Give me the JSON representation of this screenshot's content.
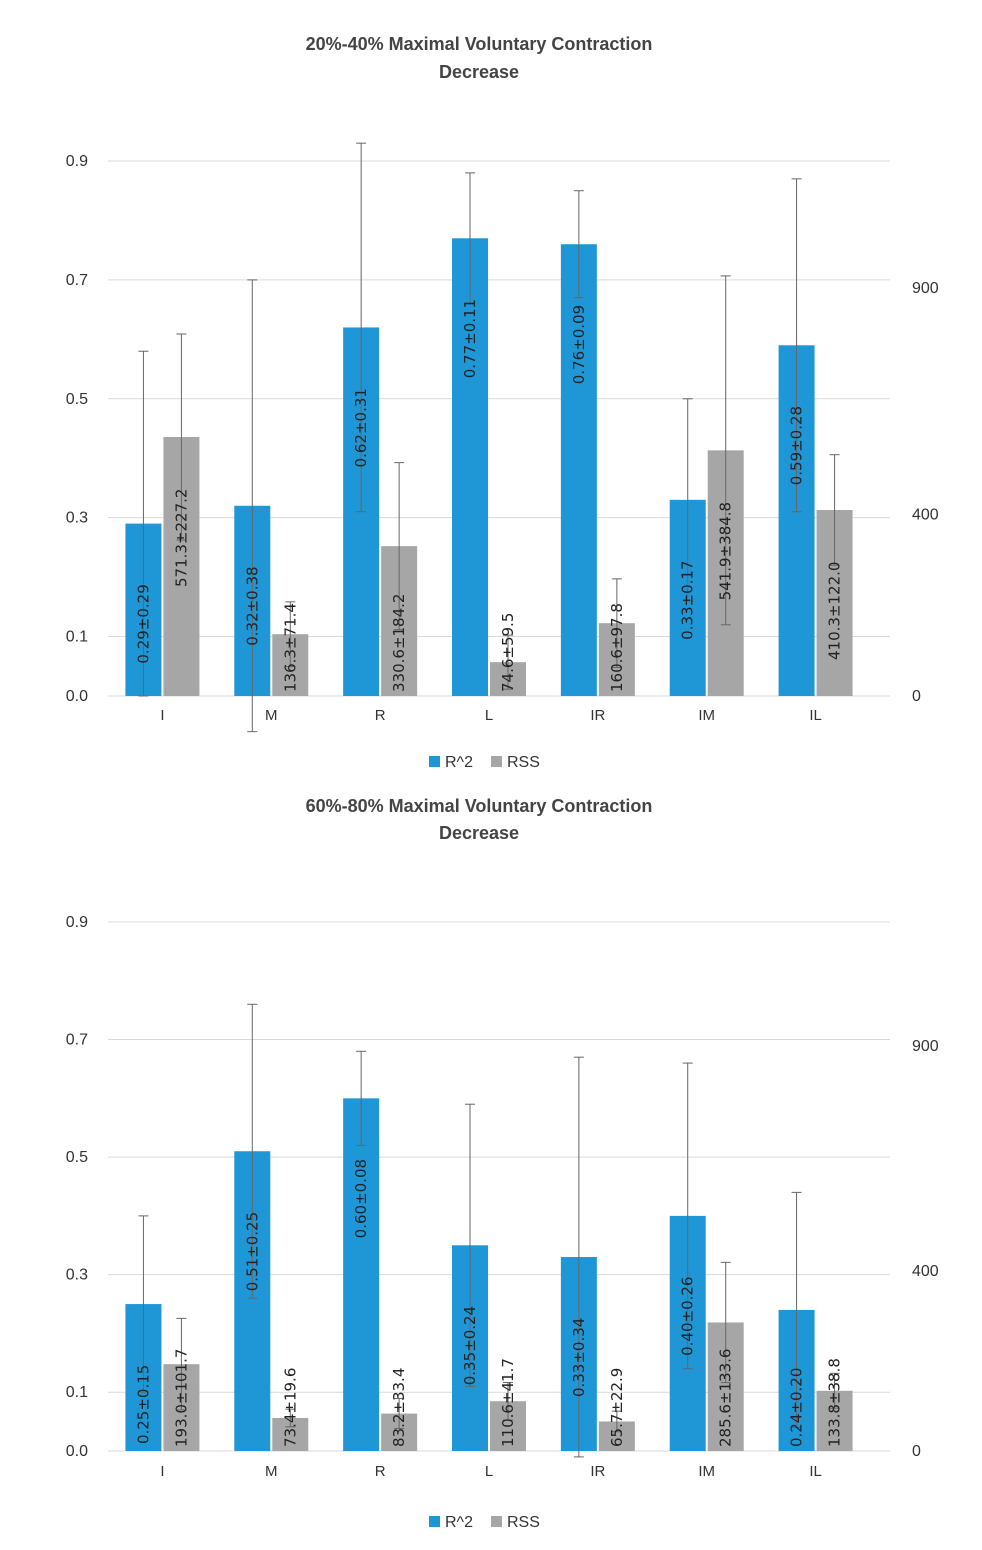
{
  "chart_data": [
    {
      "type": "bar",
      "title": "20%-40% Maximal Voluntary Contraction",
      "subtitle": "Decrease",
      "categories": [
        "I",
        "M",
        "R",
        "L",
        "IR",
        "IM",
        "IL"
      ],
      "legend": {
        "placement": "bottom"
      },
      "grid": true,
      "y_left": {
        "ylim": [
          0,
          0.9
        ],
        "ticks": [
          "0.0",
          "0.1",
          "0.3",
          "0.5",
          "0.7",
          "0.9"
        ]
      },
      "y_right": {
        "ticks": [
          "0",
          "400",
          "900"
        ]
      },
      "series": [
        {
          "name": "R^2",
          "axis": "left",
          "color": "#1f97d6",
          "values": [
            0.29,
            0.32,
            0.62,
            0.77,
            0.76,
            0.33,
            0.59
          ],
          "errors": [
            0.29,
            0.38,
            0.31,
            0.11,
            0.09,
            0.17,
            0.28
          ],
          "labels": [
            "0.29±0.29",
            "0.32±0.38",
            "0.62±0.31",
            "0.77±0.11",
            "0.76±0.09",
            "0.33±0.17",
            "0.59±0.28"
          ]
        },
        {
          "name": "RSS",
          "axis": "right",
          "color": "#a6a6a6",
          "values": [
            571.3,
            136.3,
            330.6,
            74.6,
            160.6,
            541.9,
            410.3
          ],
          "errors": [
            227.2,
            71.4,
            184.2,
            59.5,
            97.8,
            384.8,
            122.0
          ],
          "labels": [
            "571.3±227.2",
            "136.3±71.4",
            "330.6±184.2",
            "74.6±59.5",
            "160.6±97.8",
            "541.9±384.8",
            "410.3±122.0"
          ]
        }
      ]
    },
    {
      "type": "bar",
      "title": "60%-80% Maximal Voluntary Contraction",
      "subtitle": "Decrease",
      "categories": [
        "I",
        "M",
        "R",
        "L",
        "IR",
        "IM",
        "IL"
      ],
      "legend": {
        "placement": "bottom"
      },
      "grid": true,
      "y_left": {
        "ylim": [
          0,
          0.9
        ],
        "ticks": [
          "0.0",
          "0.1",
          "0.3",
          "0.5",
          "0.7",
          "0.9"
        ]
      },
      "y_right": {
        "ticks": [
          "0",
          "400",
          "900"
        ]
      },
      "series": [
        {
          "name": "R^2",
          "axis": "left",
          "color": "#1f97d6",
          "values": [
            0.25,
            0.51,
            0.6,
            0.35,
            0.33,
            0.4,
            0.24
          ],
          "errors": [
            0.15,
            0.25,
            0.08,
            0.24,
            0.34,
            0.26,
            0.2
          ],
          "labels": [
            "0.25±0.15",
            "0.51±0.25",
            "0.60±0.08",
            "0.35±0.24",
            "0.33±0.34",
            "0.40±0.26",
            "0.24±0.20"
          ]
        },
        {
          "name": "RSS",
          "axis": "right",
          "color": "#a6a6a6",
          "values": [
            193.0,
            73.4,
            83.2,
            110.6,
            65.7,
            285.6,
            133.8
          ],
          "errors": [
            101.7,
            19.6,
            33.4,
            41.7,
            22.9,
            133.6,
            38.8
          ],
          "labels": [
            "193.0±101.7",
            "73.4±19.6",
            "83.2±33.4",
            "110.6±41.7",
            "65.7±22.9",
            "285.6±133.6",
            "133.8±38.8"
          ]
        }
      ]
    }
  ]
}
